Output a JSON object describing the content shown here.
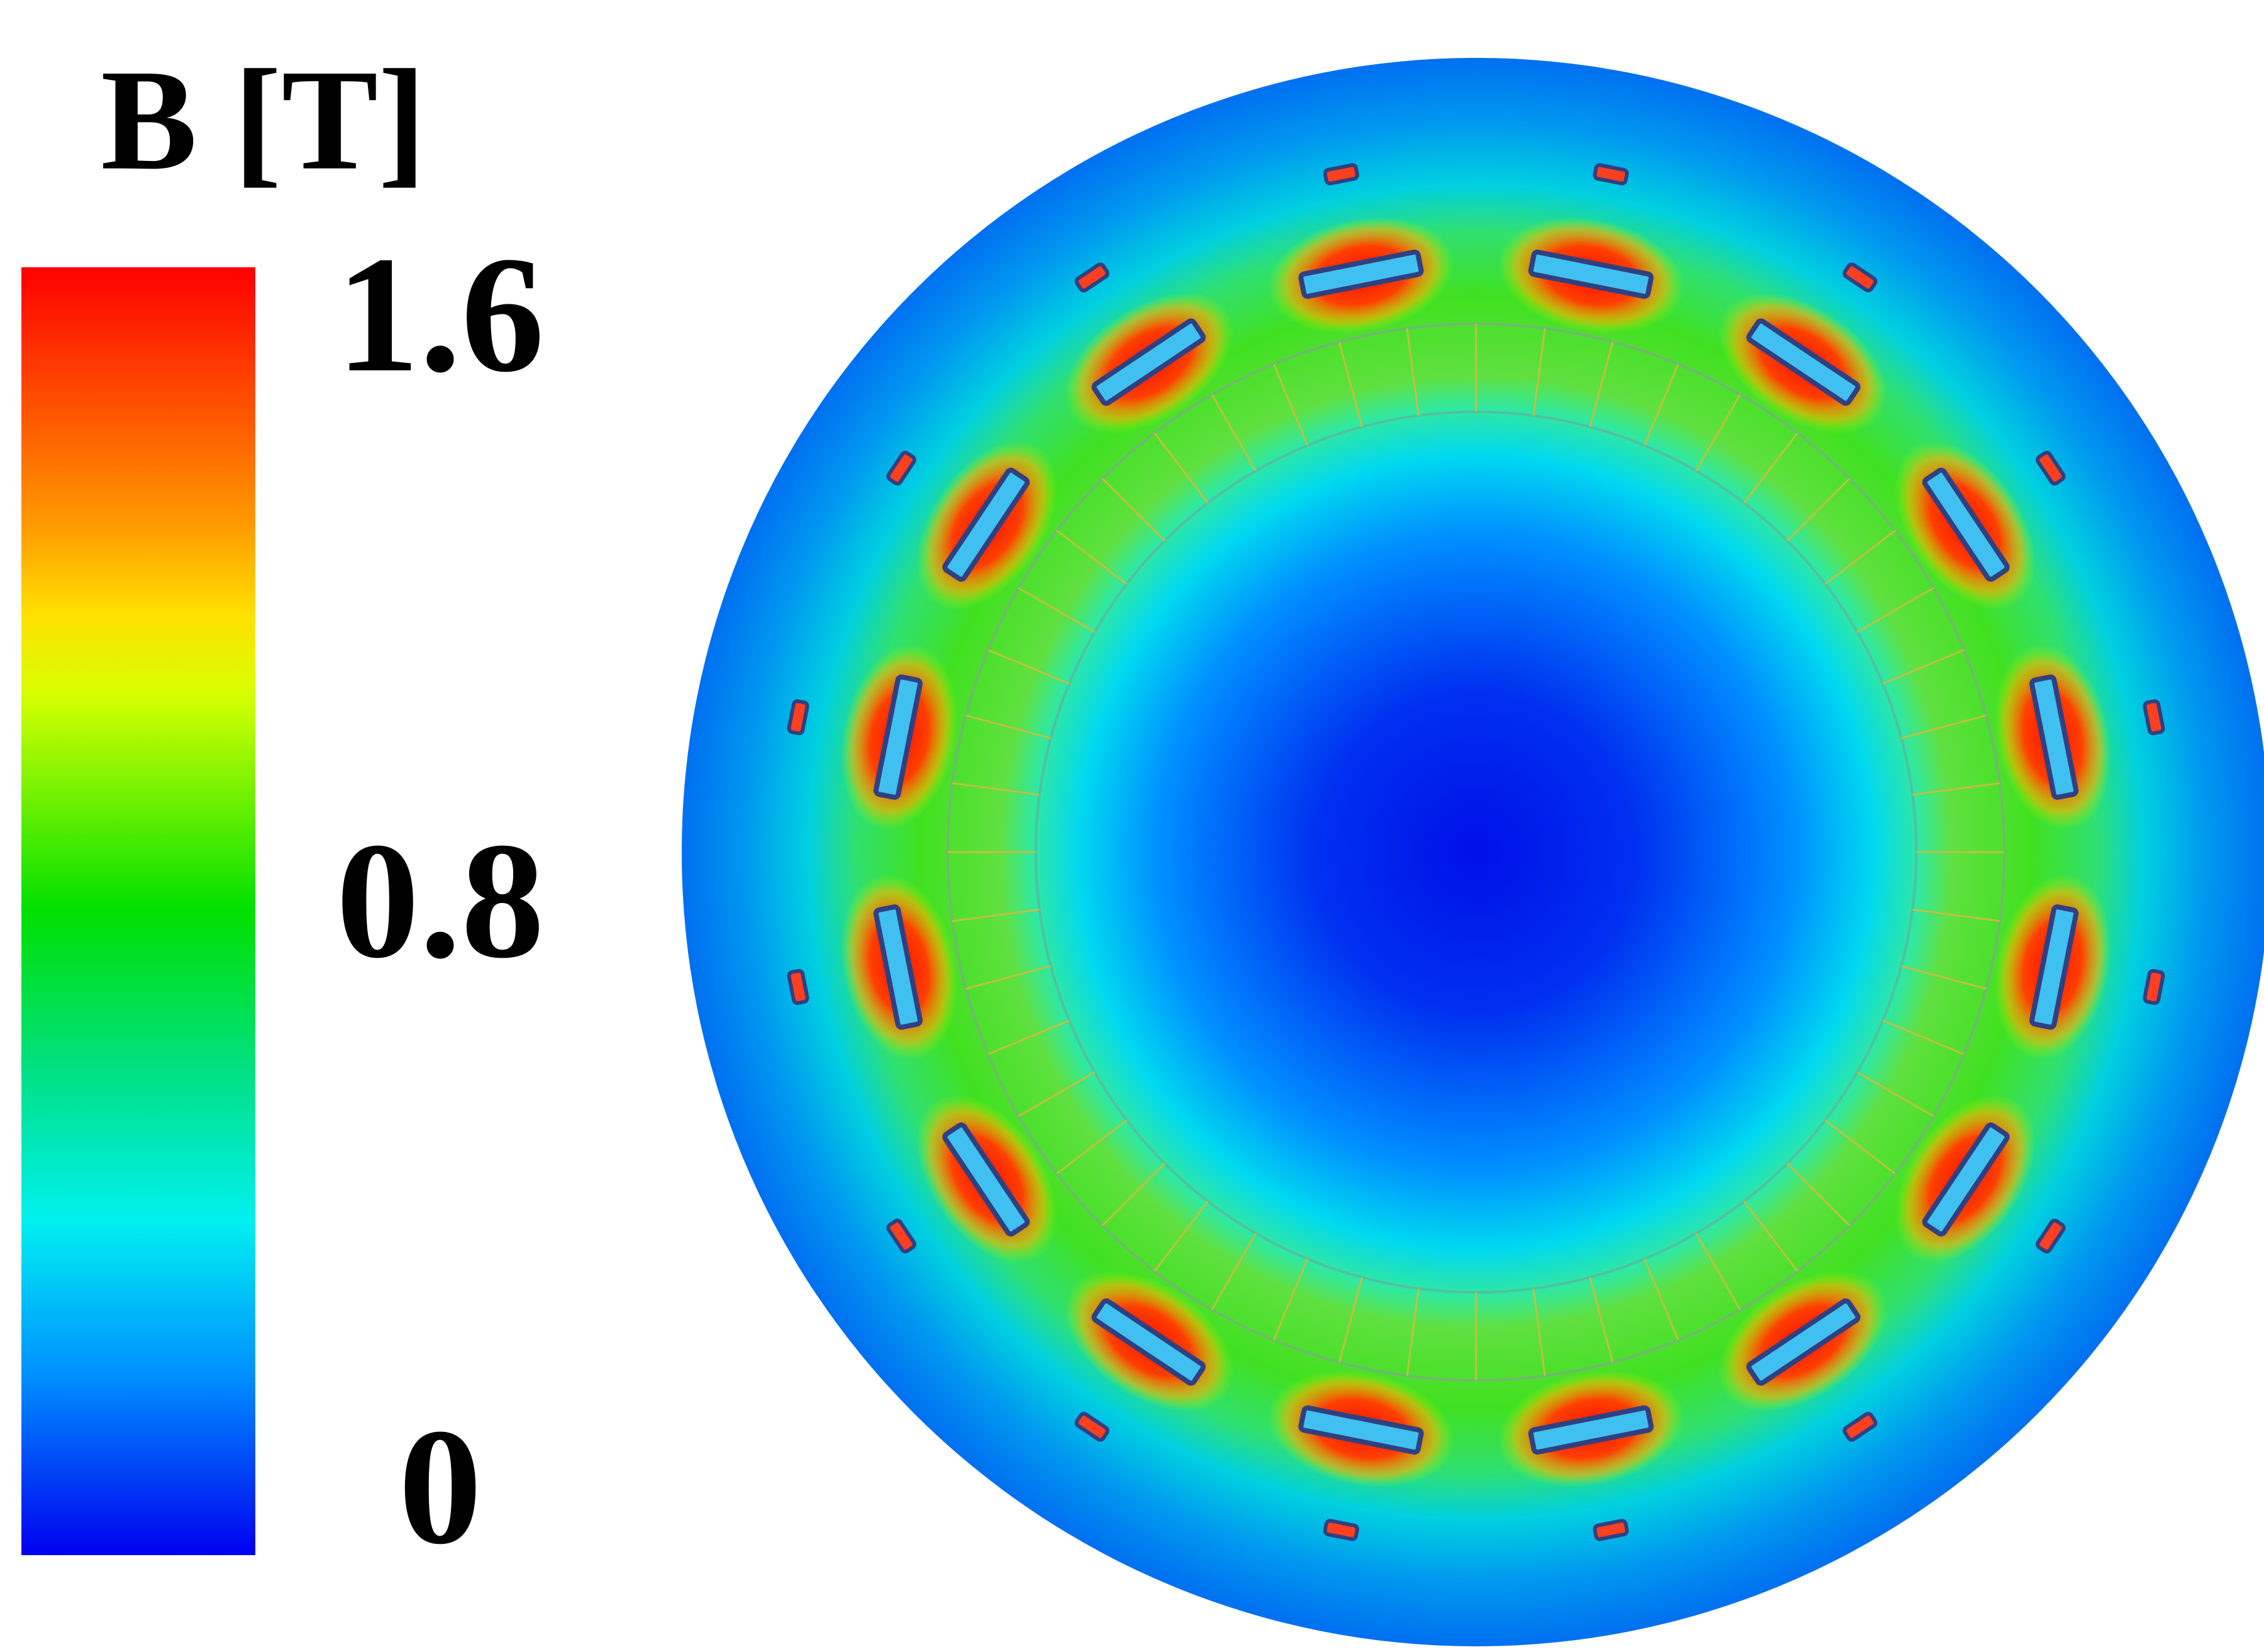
{
  "chart_data": {
    "type": "colorbar",
    "title": "B [T]",
    "clim": [
      0,
      1.6
    ],
    "ticks": [
      0,
      0.8,
      1.6
    ]
  }
}
